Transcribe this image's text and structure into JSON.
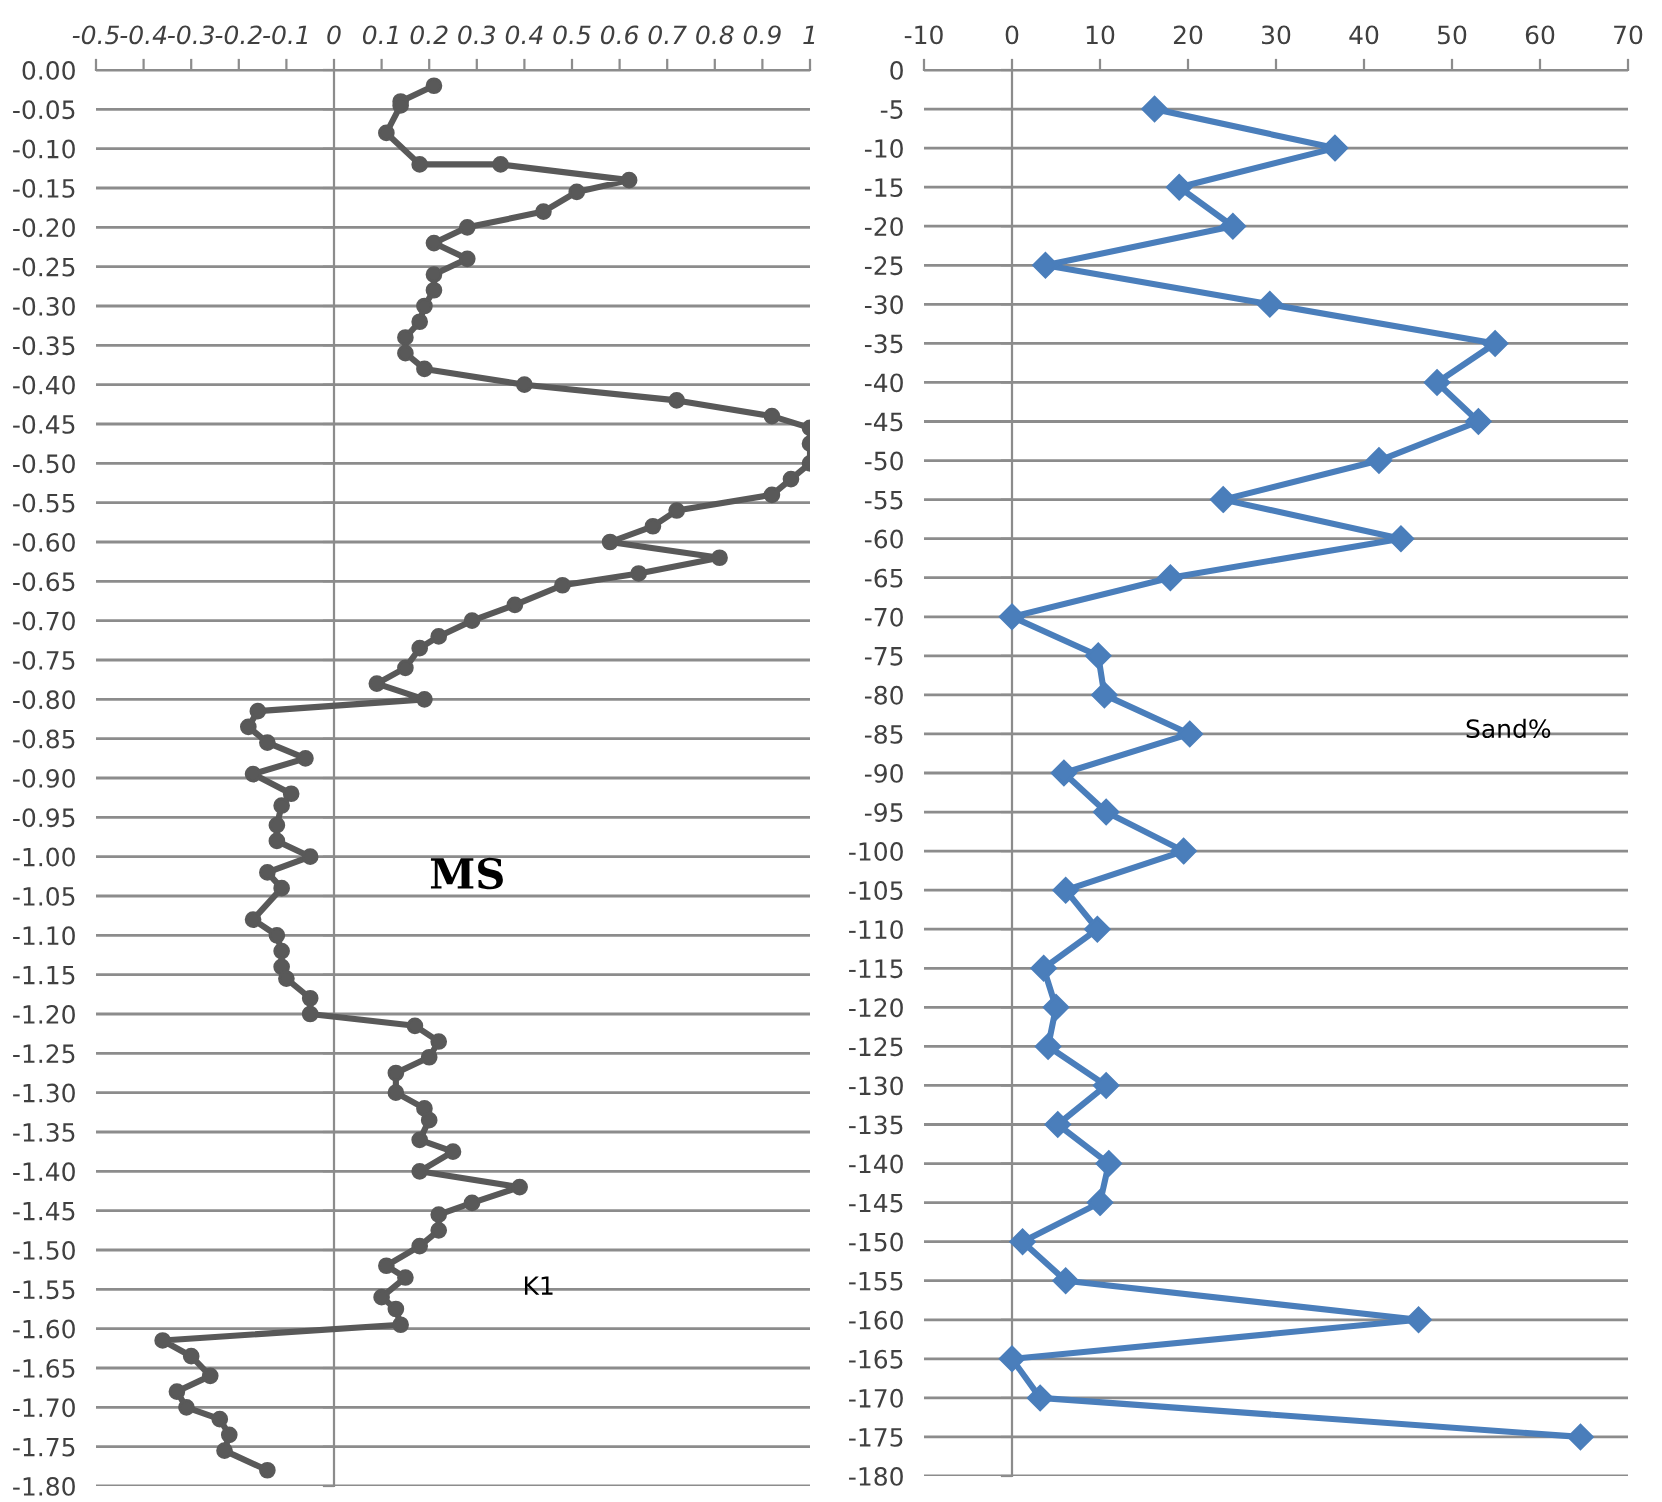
{
  "chart_data": [
    {
      "type": "line",
      "annotations": [
        "MS",
        "K1"
      ],
      "xlim": [
        -0.5,
        1
      ],
      "ylim": [
        -1.8,
        0
      ],
      "xticks": [
        -0.5,
        -0.4,
        -0.3,
        -0.2,
        -0.1,
        0,
        0.1,
        0.2,
        0.3,
        0.4,
        0.5,
        0.6,
        0.7,
        0.8,
        0.9,
        1
      ],
      "yticks": [
        {
          "value": 0,
          "label": "0.00"
        },
        {
          "value": -0.05,
          "label": "-0.05"
        },
        {
          "value": -0.1,
          "label": "-0.10"
        },
        {
          "value": -0.15,
          "label": "-0.15"
        },
        {
          "value": -0.2,
          "label": "-0.20"
        },
        {
          "value": -0.25,
          "label": "-0.25"
        },
        {
          "value": -0.3,
          "label": "-0.30"
        },
        {
          "value": -0.35,
          "label": "-0.35"
        },
        {
          "value": -0.4,
          "label": "-0.40"
        },
        {
          "value": -0.45,
          "label": "-0.45"
        },
        {
          "value": -0.5,
          "label": "-0.50"
        },
        {
          "value": -0.55,
          "label": "-0.55"
        },
        {
          "value": -0.6,
          "label": "-0.60"
        },
        {
          "value": -0.65,
          "label": "-0.65"
        },
        {
          "value": -0.7,
          "label": "-0.70"
        },
        {
          "value": -0.75,
          "label": "-0.75"
        },
        {
          "value": -0.8,
          "label": "-0.80"
        },
        {
          "value": -0.85,
          "label": "-0.85"
        },
        {
          "value": -0.9,
          "label": "-0.90"
        },
        {
          "value": -0.95,
          "label": "-0.95"
        },
        {
          "value": -1.0,
          "label": "-1.00"
        },
        {
          "value": -1.05,
          "label": "-1.05"
        },
        {
          "value": -1.1,
          "label": "-1.10"
        },
        {
          "value": -1.15,
          "label": "-1.15"
        },
        {
          "value": -1.2,
          "label": "-1.20"
        },
        {
          "value": -1.25,
          "label": "-1.25"
        },
        {
          "value": -1.3,
          "label": "-1.30"
        },
        {
          "value": -1.35,
          "label": "-1.35"
        },
        {
          "value": -1.4,
          "label": "-1.40"
        },
        {
          "value": -1.45,
          "label": "-1.45"
        },
        {
          "value": -1.5,
          "label": "-1.50"
        },
        {
          "value": -1.55,
          "label": "-1.55"
        },
        {
          "value": -1.6,
          "label": "-1.60"
        },
        {
          "value": -1.65,
          "label": "-1.65"
        },
        {
          "value": -1.7,
          "label": "-1.70"
        },
        {
          "value": -1.75,
          "label": "-1.75"
        },
        {
          "value": -1.8,
          "label": "-1.80"
        }
      ],
      "grid": "y",
      "marker": "circle",
      "line_style": "solid",
      "series": [
        {
          "color": "#595959",
          "x": [
            0.21,
            0.14,
            0.14,
            0.11,
            0.18,
            0.35,
            0.62,
            0.51,
            0.44,
            0.28,
            0.21,
            0.28,
            0.21,
            0.21,
            0.19,
            0.18,
            0.15,
            0.15,
            0.19,
            0.4,
            0.72,
            0.92,
            1.0,
            1.0,
            1.0,
            0.96,
            0.92,
            0.72,
            0.67,
            0.58,
            0.81,
            0.64,
            0.48,
            0.38,
            0.29,
            0.22,
            0.18,
            0.15,
            0.09,
            0.19,
            -0.16,
            -0.18,
            -0.14,
            -0.06,
            -0.17,
            -0.09,
            -0.11,
            -0.12,
            -0.12,
            -0.05,
            -0.14,
            -0.11,
            -0.17,
            -0.12,
            -0.11,
            -0.11,
            -0.1,
            -0.05,
            -0.05,
            0.17,
            0.22,
            0.2,
            0.13,
            0.13,
            0.19,
            0.2,
            0.18,
            0.25,
            0.18,
            0.39,
            0.29,
            0.22,
            0.22,
            0.18,
            0.11,
            0.15,
            0.1,
            0.13,
            0.14,
            -0.36,
            -0.3,
            -0.26,
            -0.33,
            -0.31,
            -0.24,
            -0.22,
            -0.23,
            -0.14
          ],
          "values": [
            -0.02,
            -0.04,
            -0.045,
            -0.08,
            -0.12,
            -0.12,
            -0.14,
            -0.155,
            -0.18,
            -0.2,
            -0.22,
            -0.24,
            -0.26,
            -0.28,
            -0.3,
            -0.32,
            -0.34,
            -0.36,
            -0.38,
            -0.4,
            -0.42,
            -0.44,
            -0.455,
            -0.475,
            -0.5,
            -0.52,
            -0.54,
            -0.56,
            -0.58,
            -0.6,
            -0.62,
            -0.64,
            -0.655,
            -0.68,
            -0.7,
            -0.72,
            -0.735,
            -0.76,
            -0.78,
            -0.8,
            -0.815,
            -0.835,
            -0.855,
            -0.875,
            -0.895,
            -0.92,
            -0.935,
            -0.96,
            -0.98,
            -1.0,
            -1.02,
            -1.04,
            -1.08,
            -1.1,
            -1.12,
            -1.14,
            -1.155,
            -1.18,
            -1.2,
            -1.215,
            -1.235,
            -1.255,
            -1.275,
            -1.3,
            -1.32,
            -1.335,
            -1.36,
            -1.375,
            -1.4,
            -1.42,
            -1.44,
            -1.455,
            -1.475,
            -1.495,
            -1.52,
            -1.535,
            -1.56,
            -1.575,
            -1.595,
            -1.615,
            -1.635,
            -1.66,
            -1.68,
            -1.7,
            -1.715,
            -1.735,
            -1.755,
            -1.78
          ]
        }
      ]
    },
    {
      "type": "line",
      "annotations": [
        "Sand%"
      ],
      "xlim": [
        -10,
        70
      ],
      "ylim": [
        -180,
        0
      ],
      "xticks": [
        -10,
        0,
        10,
        20,
        30,
        40,
        50,
        60,
        70
      ],
      "yticks": [
        0,
        -5,
        -10,
        -15,
        -20,
        -25,
        -30,
        -35,
        -40,
        -45,
        -50,
        -55,
        -60,
        -65,
        -70,
        -75,
        -80,
        -85,
        -90,
        -95,
        -100,
        -105,
        -110,
        -115,
        -120,
        -125,
        -130,
        -135,
        -140,
        -145,
        -150,
        -155,
        -160,
        -165,
        -170,
        -175,
        -180
      ],
      "grid": "y",
      "marker": "diamond",
      "line_style": "solid",
      "series": [
        {
          "color": "#4a7ebb",
          "x": [
            16.2,
            36.7,
            19.0,
            25.1,
            3.8,
            29.3,
            54.9,
            48.3,
            53.0,
            41.7,
            24.0,
            44.2,
            18.0,
            0,
            9.8,
            10.5,
            20.2,
            5.9,
            10.7,
            19.5,
            6.1,
            9.7,
            3.6,
            5.0,
            4.1,
            10.7,
            5.2,
            11.0,
            10.0,
            1.2,
            6.1,
            46.2,
            0,
            3.2,
            64.6
          ],
          "values": [
            -5,
            -10,
            -15,
            -20,
            -25,
            -30,
            -35,
            -40,
            -45,
            -50,
            -55,
            -60,
            -65,
            -70,
            -75,
            -80,
            -85,
            -90,
            -95,
            -100,
            -105,
            -110,
            -115,
            -120,
            -125,
            -130,
            -135,
            -140,
            -145,
            -150,
            -155,
            -160,
            -165,
            -170,
            -175
          ]
        }
      ]
    }
  ]
}
